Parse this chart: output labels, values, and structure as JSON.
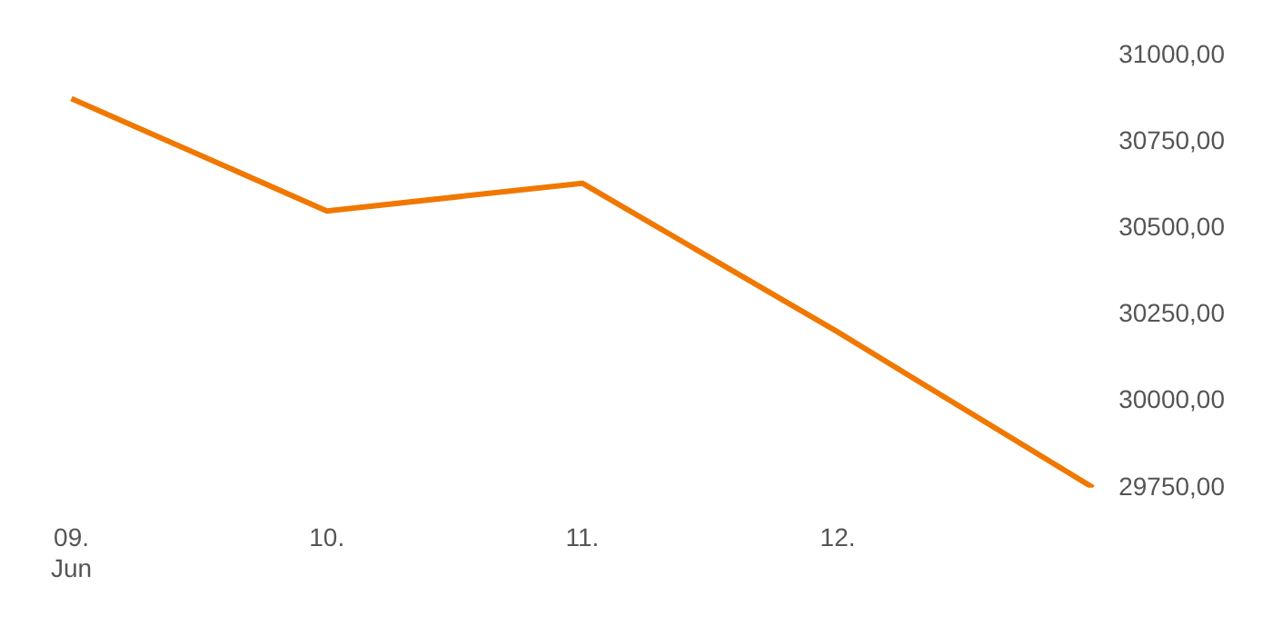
{
  "chart_data": {
    "type": "line",
    "categories": [
      "09.\nJun",
      "10.",
      "11.",
      "12.",
      null
    ],
    "series": [
      {
        "color": "#f07800",
        "values": [
          30875,
          30550,
          30630,
          30200,
          29750
        ]
      }
    ],
    "ylim": [
      29750,
      31000
    ],
    "yticks": [
      {
        "value": 29750,
        "label": "29750,00"
      },
      {
        "value": 30000,
        "label": "30000,00"
      },
      {
        "value": 30250,
        "label": "30250,00"
      },
      {
        "value": 30500,
        "label": "30500,00"
      },
      {
        "value": 30750,
        "label": "30750,00"
      },
      {
        "value": 31000,
        "label": "31000,00"
      }
    ],
    "grid": false,
    "legend": false,
    "marker": "none",
    "line_style": "solid"
  }
}
